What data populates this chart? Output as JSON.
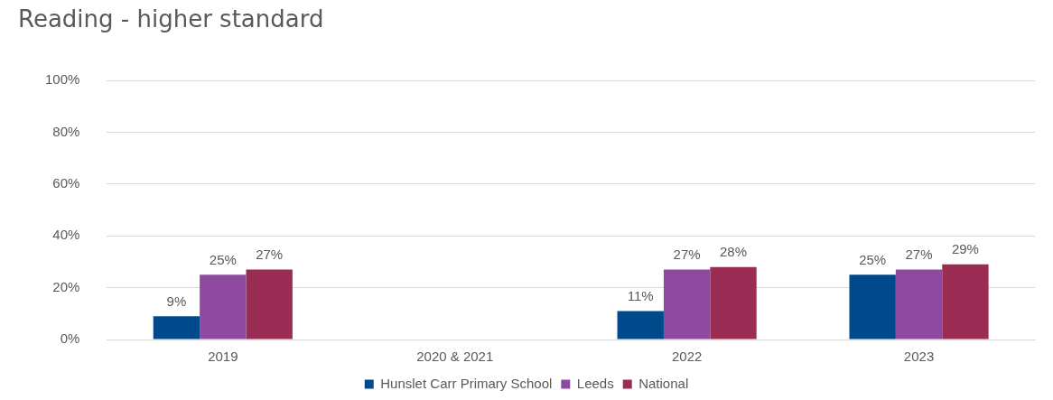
{
  "chart_data": {
    "type": "bar",
    "title": "Reading - higher standard",
    "categories": [
      "2019",
      "2020 & 2021",
      "2022",
      "2023"
    ],
    "series": [
      {
        "name": "Hunslet Carr Primary School",
        "color": "#004a8c",
        "values": [
          9,
          null,
          11,
          25
        ],
        "value_labels": [
          "9%",
          null,
          "11%",
          "25%"
        ]
      },
      {
        "name": "Leeds",
        "color": "#8e4a9e",
        "values": [
          25,
          null,
          27,
          27
        ],
        "value_labels": [
          "25%",
          null,
          "27%",
          "27%"
        ]
      },
      {
        "name": "National",
        "color": "#9b2d55",
        "values": [
          27,
          null,
          28,
          29
        ],
        "value_labels": [
          "27%",
          null,
          "28%",
          "29%"
        ]
      }
    ],
    "ylim": [
      0,
      100
    ],
    "yticks": [
      {
        "value": 0,
        "label": "0%"
      },
      {
        "value": 20,
        "label": "20%"
      },
      {
        "value": 40,
        "label": "40%"
      },
      {
        "value": 60,
        "label": "60%"
      },
      {
        "value": 80,
        "label": "80%"
      },
      {
        "value": 100,
        "label": "100%"
      }
    ],
    "grid": "y",
    "legend": "bottom"
  }
}
